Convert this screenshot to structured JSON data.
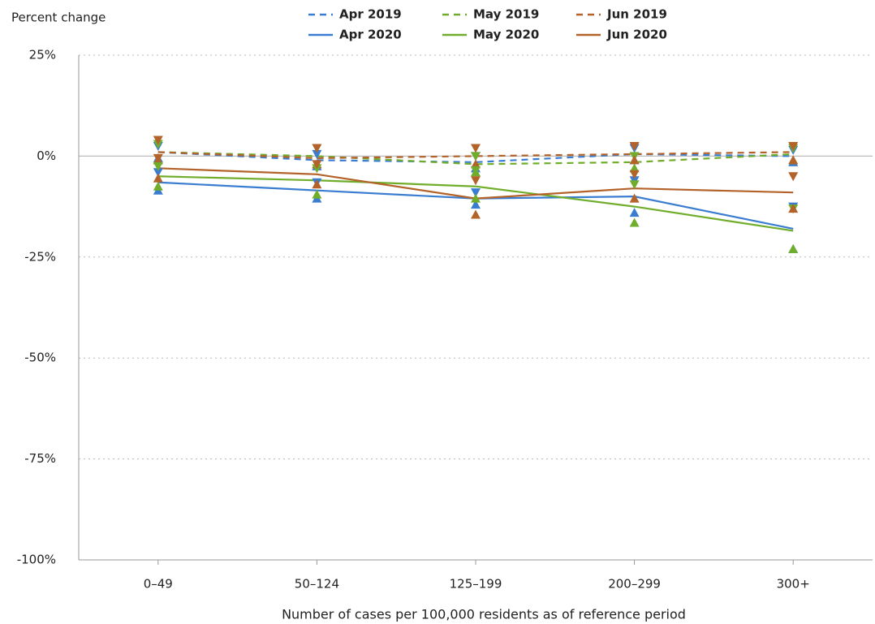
{
  "chart_data": {
    "type": "line",
    "y_label": "Percent change",
    "x_label": "Number of cases per 100,000 residents as of reference period",
    "categories": [
      "0–49",
      "50–124",
      "125–199",
      "200–299",
      "300+"
    ],
    "ylim": [
      -100,
      25
    ],
    "yticks": [
      {
        "value": 25,
        "label": "25%"
      },
      {
        "value": 0,
        "label": "0%"
      },
      {
        "value": -25,
        "label": "-25%"
      },
      {
        "value": -50,
        "label": "-50%"
      },
      {
        "value": -75,
        "label": "-75%"
      },
      {
        "value": -100,
        "label": "-100%"
      }
    ],
    "grid": true,
    "series": [
      {
        "name": "Apr 2019",
        "color": "#3a7dd0",
        "dashed": true,
        "values": [
          1,
          -1,
          -1.5,
          0.5,
          0
        ],
        "lower": [
          -0.5,
          -2.5,
          -3,
          -1,
          -1.5
        ],
        "upper": [
          2.5,
          0.5,
          0,
          2,
          1.5
        ]
      },
      {
        "name": "May 2019",
        "color": "#6fad2a",
        "dashed": true,
        "values": [
          1,
          0,
          -2,
          -1.5,
          0.5
        ],
        "lower": [
          -1,
          -2,
          -4,
          -3,
          -1
        ],
        "upper": [
          3,
          2,
          0,
          0,
          2
        ]
      },
      {
        "name": "Jun 2019",
        "color": "#b3622a",
        "dashed": true,
        "values": [
          1,
          -0.5,
          0,
          0.5,
          1
        ],
        "lower": [
          -1,
          -2,
          -2,
          -1,
          -1
        ],
        "upper": [
          4,
          2,
          2,
          2.5,
          2.5
        ]
      },
      {
        "name": "Apr 2020",
        "color": "#3a7dd0",
        "dashed": false,
        "values": [
          -6.5,
          -8.5,
          -10.5,
          -10,
          -18
        ],
        "lower": [
          -8.5,
          -10.5,
          -12,
          -14,
          -23
        ],
        "upper": [
          -4,
          -6.5,
          -9,
          -6,
          -12.5
        ]
      },
      {
        "name": "May 2020",
        "color": "#6fad2a",
        "dashed": false,
        "values": [
          -5,
          -6,
          -7.5,
          -12.5,
          -18.5
        ],
        "lower": [
          -7.5,
          -9.5,
          -10.5,
          -16.5,
          -23
        ],
        "upper": [
          -2.5,
          -3,
          -3.5,
          -7,
          -13
        ]
      },
      {
        "name": "Jun 2020",
        "color": "#b3622a",
        "dashed": false,
        "values": [
          -3,
          -4.5,
          -10.5,
          -8,
          -9
        ],
        "lower": [
          -5.5,
          -7,
          -14.5,
          -10.5,
          -13
        ],
        "upper": [
          -0.5,
          -2,
          -6,
          -4.5,
          -5
        ]
      }
    ]
  }
}
